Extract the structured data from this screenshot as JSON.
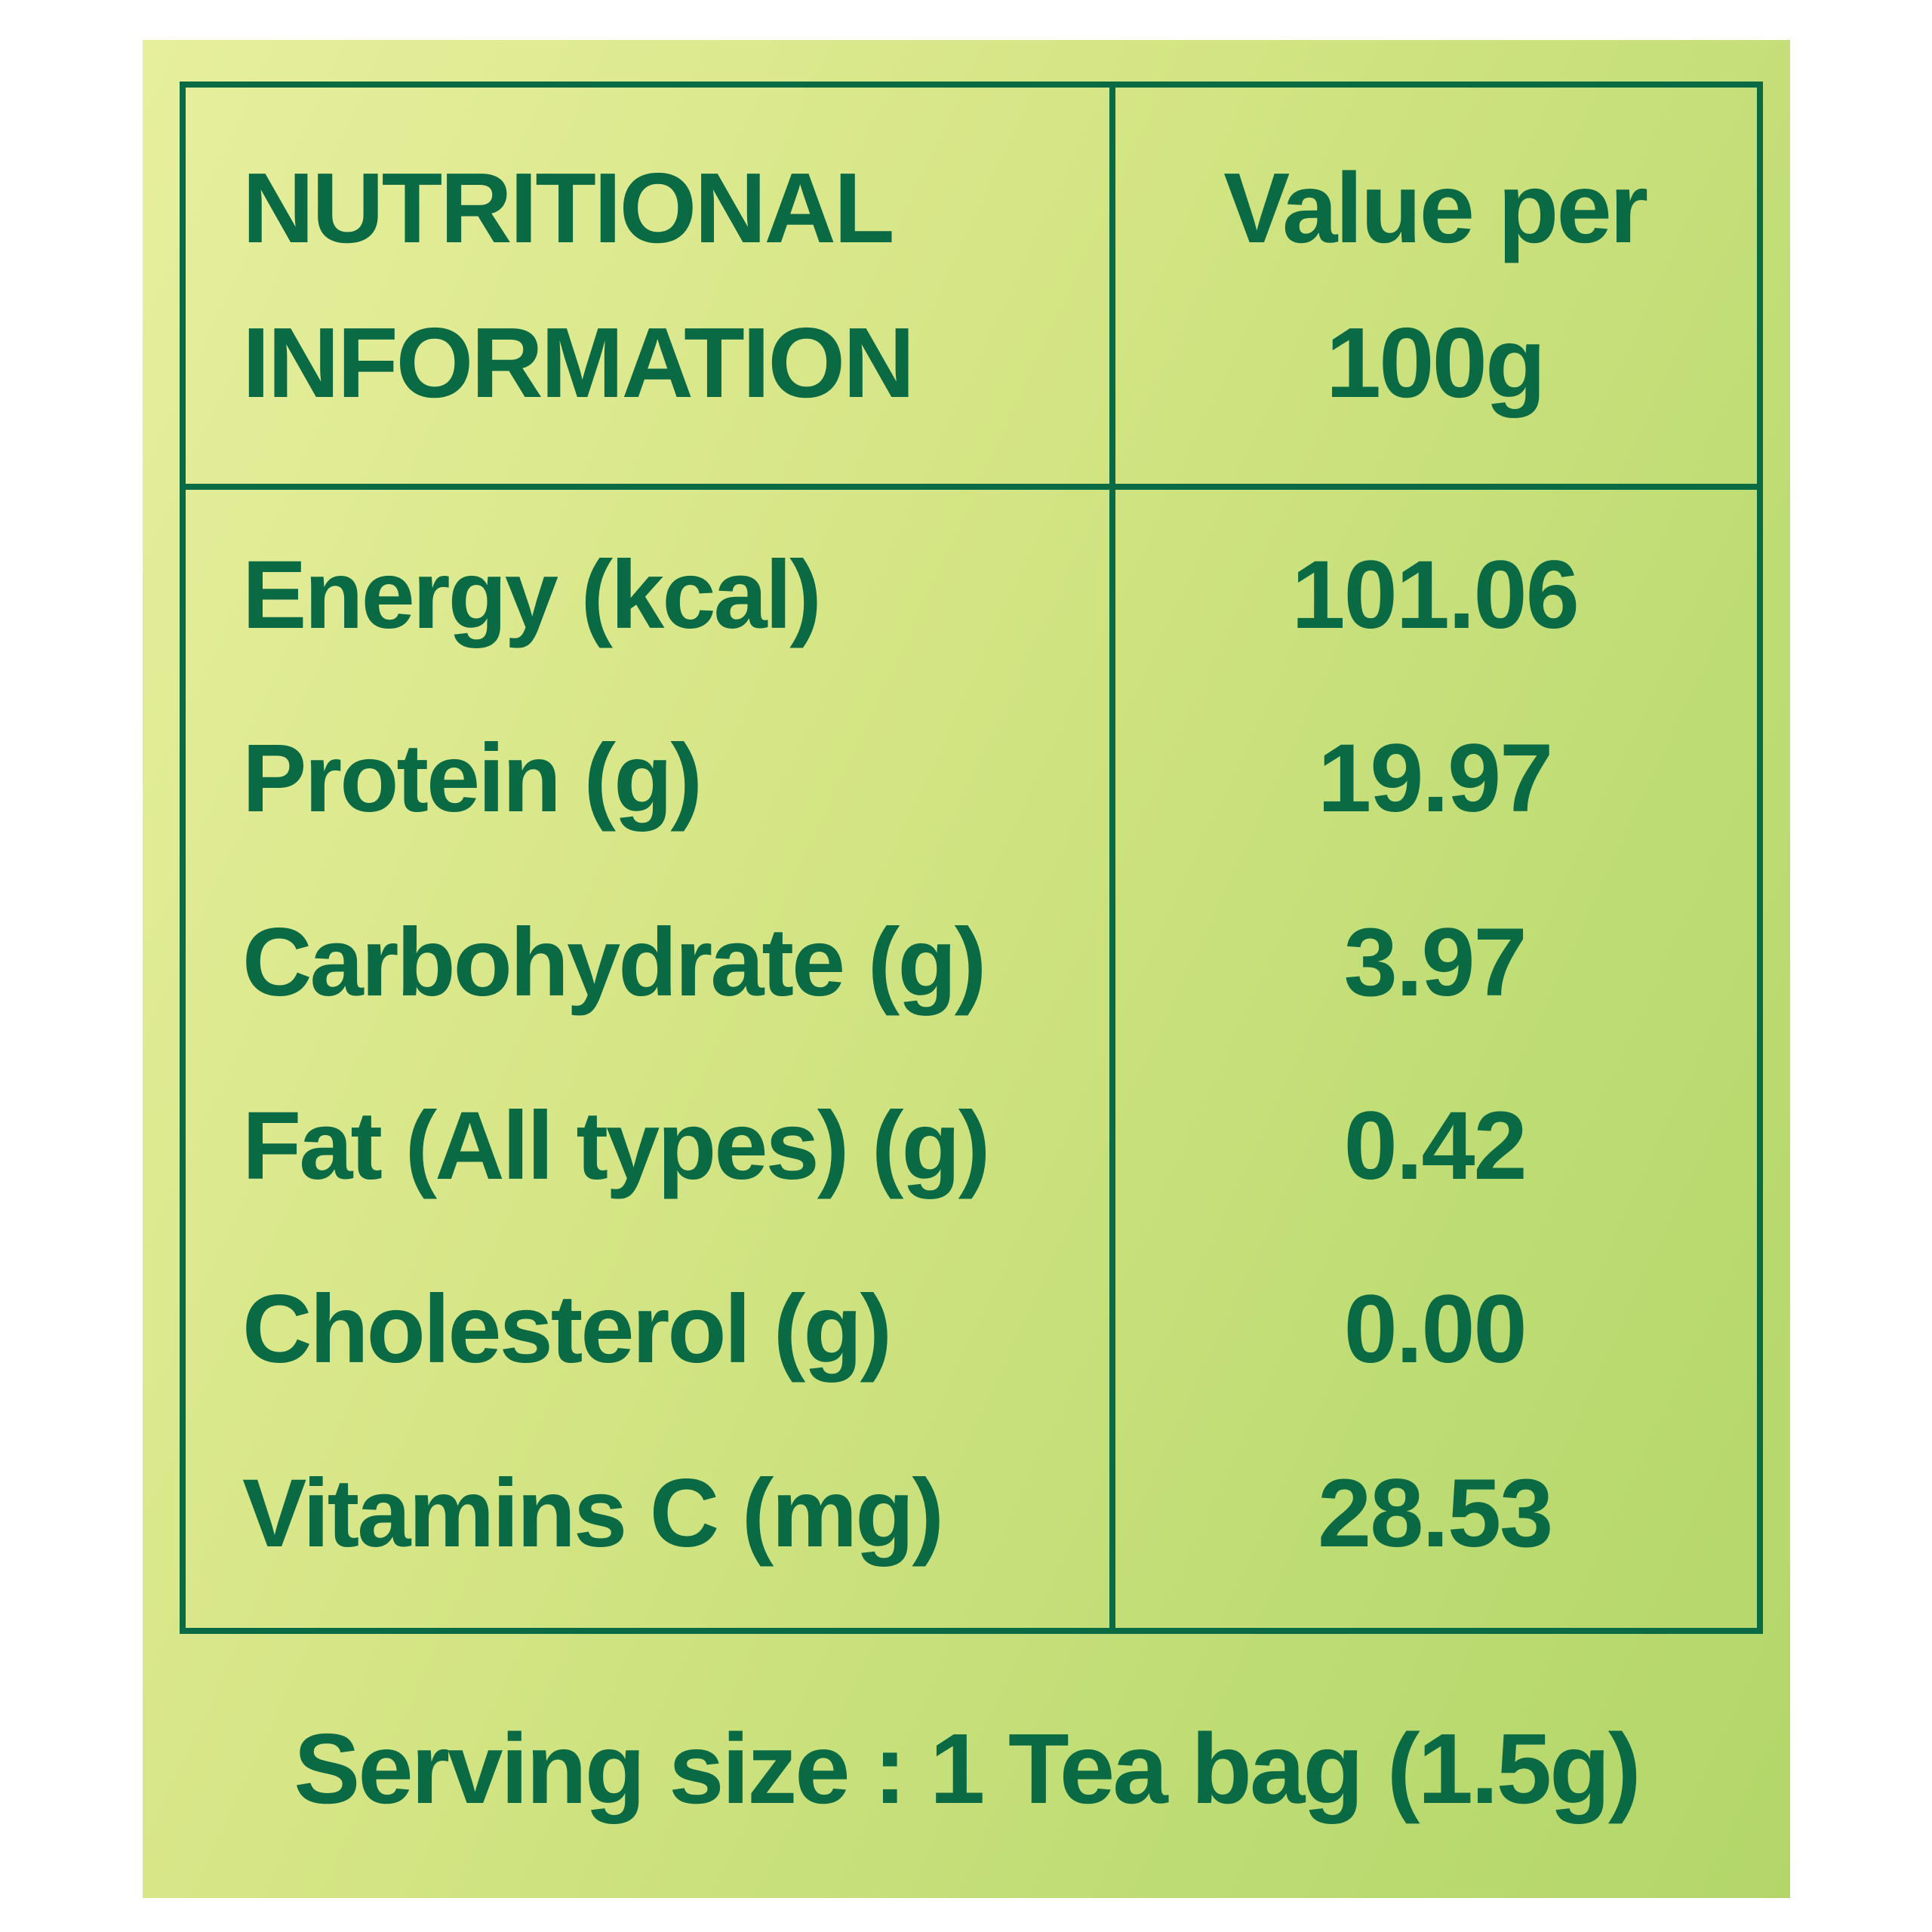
{
  "colors": {
    "ink": "#0a6a44",
    "background_light": "#e7ef9d",
    "background_dark": "#b3d669"
  },
  "table": {
    "header": {
      "col1_line1": "NUTRITIONAL",
      "col1_line2": "INFORMATION",
      "col2_line1": "Value per",
      "col2_line2": "100g"
    },
    "rows": [
      {
        "label": "Energy (kcal)",
        "value": "101.06"
      },
      {
        "label": "Protein (g)",
        "value": "19.97"
      },
      {
        "label": "Carbohydrate (g)",
        "value": "3.97"
      },
      {
        "label": "Fat (All types) (g)",
        "value": "0.42"
      },
      {
        "label": "Cholesterol (g)",
        "value": "0.00"
      },
      {
        "label": "Vitamins C (mg)",
        "value": "28.53"
      }
    ]
  },
  "footer": {
    "serving_text": "Serving size : 1 Tea bag (1.5g)"
  }
}
